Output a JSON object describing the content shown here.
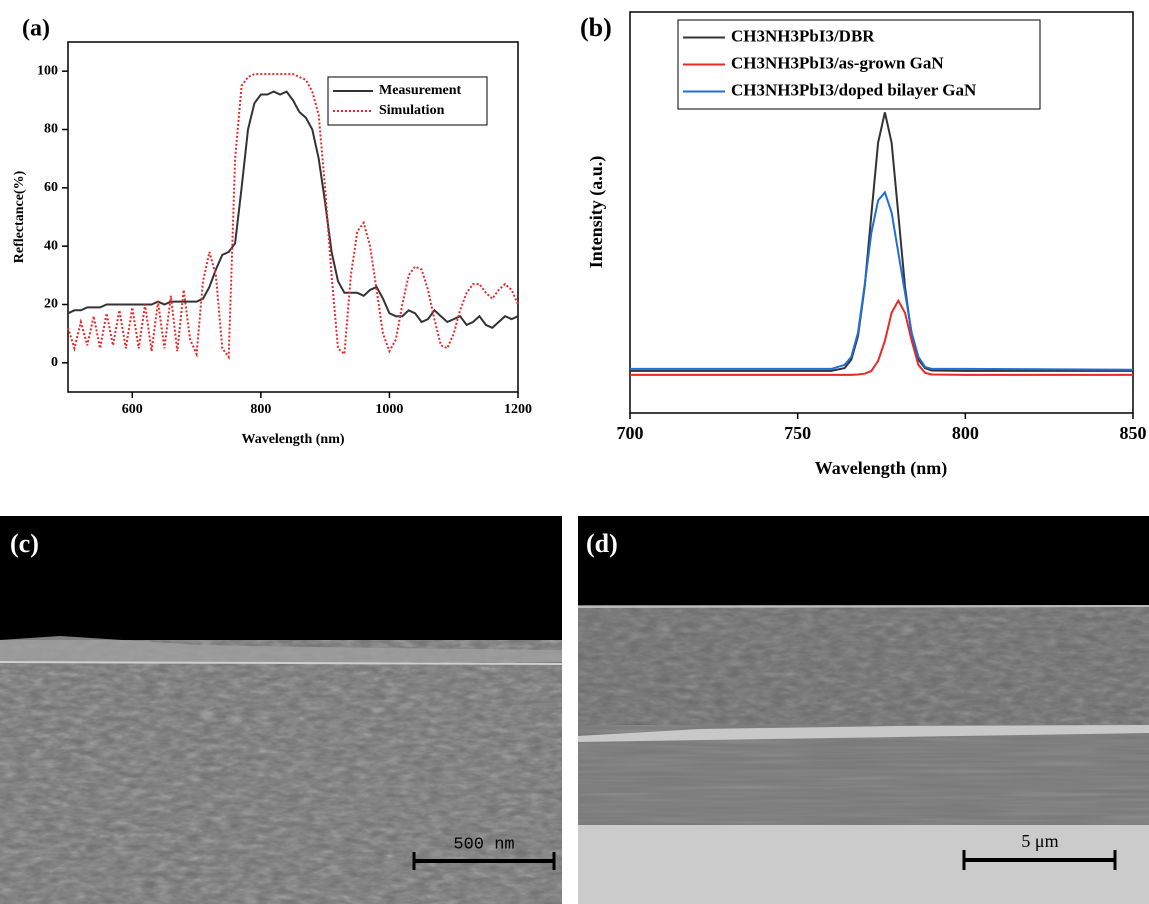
{
  "chart_data": [
    {
      "type": "line",
      "label": "(a)",
      "x_label": "Wavelength (nm)",
      "y_label": "Reflectance(%)",
      "x": [
        500,
        510,
        520,
        530,
        540,
        550,
        560,
        570,
        580,
        590,
        600,
        610,
        620,
        630,
        640,
        650,
        660,
        670,
        680,
        690,
        700,
        710,
        720,
        730,
        740,
        750,
        760,
        770,
        780,
        790,
        800,
        810,
        820,
        830,
        840,
        850,
        860,
        870,
        880,
        890,
        900,
        910,
        920,
        930,
        940,
        950,
        960,
        970,
        980,
        990,
        1000,
        1010,
        1020,
        1030,
        1040,
        1050,
        1060,
        1070,
        1080,
        1090,
        1100,
        1110,
        1120,
        1130,
        1140,
        1150,
        1160,
        1170,
        1180,
        1190,
        1200
      ],
      "series": [
        {
          "name": "Measurement",
          "color": "#333333",
          "line_style": "solid",
          "values": [
            17,
            18,
            18,
            19,
            19,
            19,
            20,
            20,
            20,
            20,
            20,
            20,
            20,
            20,
            21,
            20,
            21,
            21,
            21,
            21,
            21,
            22,
            26,
            32,
            37,
            38,
            41,
            60,
            80,
            89,
            92,
            92,
            93,
            92,
            93,
            90,
            86,
            84,
            80,
            70,
            55,
            38,
            28,
            24,
            24,
            24,
            23,
            25,
            26,
            22,
            17,
            16,
            16,
            18,
            17,
            14,
            15,
            18,
            16,
            14,
            15,
            16,
            13,
            14,
            16,
            13,
            12,
            14,
            16,
            15,
            16
          ]
        },
        {
          "name": "Simulation",
          "color": "#e8282a",
          "line_style": "dotted",
          "values": [
            12,
            5,
            14,
            6,
            16,
            5,
            17,
            6,
            18,
            5,
            19,
            5,
            20,
            4,
            21,
            5,
            23,
            4,
            25,
            8,
            3,
            28,
            38,
            30,
            5,
            2,
            70,
            95,
            98,
            99,
            99,
            99,
            99,
            99,
            99,
            99,
            98,
            97,
            93,
            85,
            60,
            30,
            5,
            3,
            30,
            45,
            48,
            40,
            25,
            10,
            4,
            8,
            20,
            30,
            33,
            32,
            25,
            15,
            6,
            5,
            10,
            18,
            24,
            27,
            27,
            24,
            22,
            25,
            27,
            25,
            20
          ]
        }
      ],
      "xlim": [
        500,
        1200
      ],
      "xticks": [
        600,
        800,
        1000,
        1200
      ],
      "ylim": [
        -10,
        110
      ],
      "yticks": [
        0,
        20,
        40,
        60,
        80,
        100
      ],
      "legend": "upper right"
    },
    {
      "type": "line",
      "label": "(b)",
      "x_label": "Wavelength (nm)",
      "y_label": "Intensity (a.u.)",
      "x": [
        700,
        740,
        760,
        764,
        766,
        768,
        770,
        772,
        774,
        776,
        778,
        780,
        782,
        784,
        786,
        788,
        790,
        800,
        850
      ],
      "series": [
        {
          "name": "CH3NH3PbI3/DBR",
          "color": "#333333",
          "line_style": "solid",
          "values": [
            0.105,
            0.105,
            0.105,
            0.112,
            0.133,
            0.192,
            0.315,
            0.496,
            0.674,
            0.75,
            0.674,
            0.496,
            0.315,
            0.192,
            0.133,
            0.112,
            0.106,
            0.105,
            0.105
          ]
        },
        {
          "name": "CH3NH3PbI3/as-grown GaN",
          "color": "#e8282a",
          "line_style": "solid",
          "values": [
            0.095,
            0.095,
            0.095,
            0.095,
            0.095,
            0.096,
            0.098,
            0.105,
            0.13,
            0.18,
            0.25,
            0.28,
            0.25,
            0.18,
            0.12,
            0.1,
            0.096,
            0.095,
            0.095
          ]
        },
        {
          "name": "CH3NH3PbI3/doped bilayer GaN",
          "color": "#1f6fd6",
          "line_style": "solid",
          "values": [
            0.11,
            0.11,
            0.11,
            0.12,
            0.14,
            0.2,
            0.32,
            0.45,
            0.53,
            0.55,
            0.5,
            0.4,
            0.3,
            0.2,
            0.14,
            0.115,
            0.11,
            0.11,
            0.108
          ]
        }
      ],
      "xlim": [
        700,
        850
      ],
      "xticks": [
        700,
        750,
        800,
        850
      ],
      "ylim": [
        0,
        1
      ],
      "legend": "upper left"
    }
  ],
  "images": [
    {
      "label": "(c)",
      "scale_bar": "500 nm"
    },
    {
      "label": "(d)",
      "scale_bar": "5 μm"
    }
  ]
}
